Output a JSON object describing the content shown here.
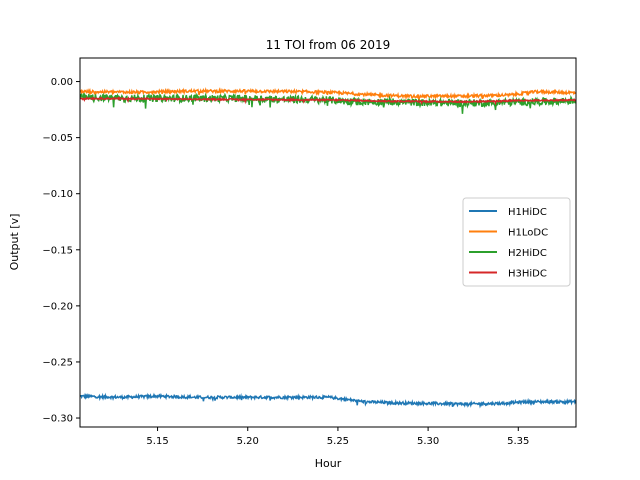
{
  "chart_data": {
    "type": "line",
    "title": "11 TOI from 06 2019",
    "xlabel": "Hour",
    "ylabel": "Output [v]",
    "xlim": [
      5.107,
      5.382
    ],
    "ylim": [
      -0.308,
      0.021
    ],
    "xticks": [
      5.15,
      5.2,
      5.25,
      5.3,
      5.35
    ],
    "xtick_labels": [
      "5.15",
      "5.20",
      "5.25",
      "5.30",
      "5.35"
    ],
    "yticks": [
      0.0,
      -0.05,
      -0.1,
      -0.15,
      -0.2,
      -0.25,
      -0.3
    ],
    "ytick_labels": [
      "0.00",
      "−0.05",
      "−0.10",
      "−0.15",
      "−0.20",
      "−0.25",
      "−0.30"
    ],
    "grid": false,
    "legend_position": "center-right",
    "series": [
      {
        "name": "H1HiDC",
        "color": "#1f77b4",
        "noise": 0.0012,
        "x": [
          5.107,
          5.13,
          5.15,
          5.17,
          5.19,
          5.21,
          5.23,
          5.245,
          5.255,
          5.265,
          5.28,
          5.3,
          5.32,
          5.34,
          5.355,
          5.365,
          5.382
        ],
        "y": [
          -0.2805,
          -0.2815,
          -0.2805,
          -0.2815,
          -0.2815,
          -0.2815,
          -0.2815,
          -0.2815,
          -0.2835,
          -0.2855,
          -0.2865,
          -0.287,
          -0.2875,
          -0.287,
          -0.2855,
          -0.2855,
          -0.2855
        ]
      },
      {
        "name": "H1LoDC",
        "color": "#ff7f0e",
        "noise": 0.0012,
        "x": [
          5.107,
          5.14,
          5.17,
          5.2,
          5.23,
          5.25,
          5.27,
          5.29,
          5.32,
          5.345,
          5.36,
          5.382
        ],
        "y": [
          -0.009,
          -0.0095,
          -0.0085,
          -0.0085,
          -0.009,
          -0.01,
          -0.012,
          -0.013,
          -0.013,
          -0.012,
          -0.009,
          -0.01
        ]
      },
      {
        "name": "H2HiDC",
        "color": "#2ca02c",
        "noise": 0.0032,
        "x": [
          5.107,
          5.14,
          5.17,
          5.2,
          5.22,
          5.24,
          5.26,
          5.28,
          5.3,
          5.33,
          5.36,
          5.382
        ],
        "y": [
          -0.014,
          -0.015,
          -0.015,
          -0.015,
          -0.016,
          -0.016,
          -0.018,
          -0.018,
          -0.019,
          -0.019,
          -0.018,
          -0.017
        ]
      },
      {
        "name": "H3HiDC",
        "color": "#d62728",
        "noise": 0.0006,
        "x": [
          5.107,
          5.15,
          5.2,
          5.25,
          5.28,
          5.32,
          5.35,
          5.382
        ],
        "y": [
          -0.015,
          -0.0155,
          -0.016,
          -0.0165,
          -0.0175,
          -0.018,
          -0.017,
          -0.0165
        ]
      }
    ]
  }
}
